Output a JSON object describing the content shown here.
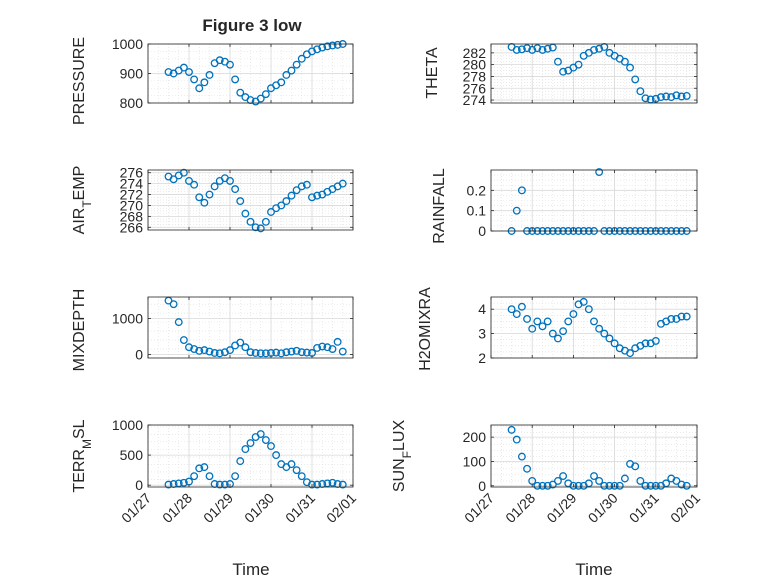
{
  "figure": {
    "title": "Figure 3 low",
    "xlabel": "Time",
    "date_ticks": [
      "01/27",
      "01/28",
      "01/29",
      "01/30",
      "01/31",
      "02/01"
    ],
    "date_values": [
      27,
      28,
      29,
      30,
      31,
      32
    ]
  },
  "style": {
    "marker_color": "#0072BD",
    "grid_color": "#dddddd"
  },
  "chart_data": [
    {
      "type": "scatter",
      "ylabel": "PRESSURE",
      "ylim": [
        800,
        1000
      ],
      "yticks": [
        800,
        900,
        1000
      ],
      "ytick_labels": [
        "800",
        "900",
        "1000"
      ],
      "xlim": [
        "01/27",
        "02/01"
      ],
      "grid": true,
      "x": [
        "01/27 12:00",
        "01/27 15:00",
        "01/27 18:00",
        "01/27 21:00",
        "01/28 00:00",
        "01/28 03:00",
        "01/28 06:00",
        "01/28 09:00",
        "01/28 12:00",
        "01/28 15:00",
        "01/28 18:00",
        "01/28 21:00",
        "01/29 00:00",
        "01/29 03:00",
        "01/29 06:00",
        "01/29 09:00",
        "01/29 12:00",
        "01/29 15:00",
        "01/29 18:00",
        "01/29 21:00",
        "01/30 00:00",
        "01/30 03:00",
        "01/30 06:00",
        "01/30 09:00",
        "01/30 12:00",
        "01/30 15:00",
        "01/30 18:00",
        "01/30 21:00",
        "01/31 00:00",
        "01/31 03:00",
        "01/31 06:00",
        "01/31 09:00",
        "01/31 12:00",
        "01/31 15:00",
        "01/31 18:00"
      ],
      "y": [
        905,
        900,
        910,
        920,
        905,
        880,
        850,
        870,
        895,
        935,
        945,
        940,
        930,
        880,
        835,
        820,
        810,
        805,
        815,
        830,
        850,
        860,
        870,
        895,
        910,
        930,
        950,
        965,
        975,
        982,
        988,
        992,
        995,
        997,
        1000
      ]
    },
    {
      "type": "scatter",
      "ylabel": "THETA",
      "ylim": [
        273.5,
        283.5
      ],
      "yticks": [
        274,
        276,
        278,
        280,
        282
      ],
      "ytick_labels": [
        "274",
        "276",
        "278",
        "280",
        "282"
      ],
      "xlim": [
        "01/27",
        "02/01"
      ],
      "grid": true,
      "x": [
        "01/27 12:00",
        "01/27 15:00",
        "01/27 18:00",
        "01/27 21:00",
        "01/28 00:00",
        "01/28 03:00",
        "01/28 06:00",
        "01/28 09:00",
        "01/28 12:00",
        "01/28 15:00",
        "01/28 18:00",
        "01/28 21:00",
        "01/29 00:00",
        "01/29 03:00",
        "01/29 06:00",
        "01/29 09:00",
        "01/29 12:00",
        "01/29 15:00",
        "01/29 18:00",
        "01/29 21:00",
        "01/30 00:00",
        "01/30 03:00",
        "01/30 06:00",
        "01/30 09:00",
        "01/30 12:00",
        "01/30 15:00",
        "01/30 18:00",
        "01/30 21:00",
        "01/31 00:00",
        "01/31 03:00",
        "01/31 06:00",
        "01/31 09:00",
        "01/31 12:00",
        "01/31 15:00",
        "01/31 18:00"
      ],
      "y": [
        283,
        282.5,
        282.6,
        282.8,
        282.5,
        282.8,
        282.5,
        282.7,
        282.9,
        280.5,
        278.8,
        279,
        279.5,
        280,
        281.5,
        282,
        282.5,
        282.7,
        283,
        282,
        281.5,
        281,
        280.5,
        279.5,
        277.5,
        275.5,
        274.3,
        274.1,
        274.2,
        274.5,
        274.6,
        274.5,
        274.8,
        274.6,
        274.7
      ]
    },
    {
      "type": "scatter",
      "ylabel": "AIR_TEMP",
      "ylim": [
        265.5,
        276.5
      ],
      "yticks": [
        266,
        268,
        270,
        272,
        274,
        276
      ],
      "ytick_labels": [
        "266",
        "268",
        "270",
        "272",
        "274",
        "276"
      ],
      "xlim": [
        "01/27",
        "02/01"
      ],
      "grid": true,
      "x": [
        "01/27 12:00",
        "01/27 15:00",
        "01/27 18:00",
        "01/27 21:00",
        "01/28 00:00",
        "01/28 03:00",
        "01/28 06:00",
        "01/28 09:00",
        "01/28 12:00",
        "01/28 15:00",
        "01/28 18:00",
        "01/28 21:00",
        "01/29 00:00",
        "01/29 03:00",
        "01/29 06:00",
        "01/29 09:00",
        "01/29 12:00",
        "01/29 15:00",
        "01/29 18:00",
        "01/29 21:00",
        "01/30 00:00",
        "01/30 03:00",
        "01/30 06:00",
        "01/30 09:00",
        "01/30 12:00",
        "01/30 15:00",
        "01/30 18:00",
        "01/30 21:00",
        "01/31 00:00",
        "01/31 03:00",
        "01/31 06:00",
        "01/31 09:00",
        "01/31 12:00",
        "01/31 15:00",
        "01/31 18:00"
      ],
      "y": [
        275.3,
        274.8,
        275.5,
        276,
        274.5,
        273.8,
        271.5,
        270.5,
        272,
        273.5,
        274.5,
        275,
        274.5,
        273,
        270.8,
        268.5,
        267,
        266,
        265.8,
        267,
        268.8,
        269.5,
        270,
        270.8,
        271.8,
        272.8,
        273.5,
        273.8,
        271.5,
        271.8,
        272,
        272.5,
        273,
        273.5,
        274
      ]
    },
    {
      "type": "scatter",
      "ylabel": "RAINFALL",
      "ylim": [
        0,
        0.3
      ],
      "yticks": [
        0,
        0.1,
        0.2
      ],
      "ytick_labels": [
        "0",
        "0.1",
        "0.2"
      ],
      "xlim": [
        "01/27",
        "02/01"
      ],
      "grid": true,
      "x": [
        "01/27 12:00",
        "01/27 15:00",
        "01/27 18:00",
        "01/27 21:00",
        "01/28 00:00",
        "01/28 03:00",
        "01/28 06:00",
        "01/28 09:00",
        "01/28 12:00",
        "01/28 15:00",
        "01/28 18:00",
        "01/28 21:00",
        "01/29 00:00",
        "01/29 03:00",
        "01/29 06:00",
        "01/29 09:00",
        "01/29 12:00",
        "01/29 15:00",
        "01/29 18:00",
        "01/29 21:00",
        "01/30 00:00",
        "01/30 03:00",
        "01/30 06:00",
        "01/30 09:00",
        "01/30 12:00",
        "01/30 15:00",
        "01/30 18:00",
        "01/30 21:00",
        "01/31 00:00",
        "01/31 03:00",
        "01/31 06:00",
        "01/31 09:00",
        "01/31 12:00",
        "01/31 15:00",
        "01/31 18:00"
      ],
      "y": [
        0,
        0.1,
        0.2,
        0,
        0,
        0,
        0,
        0,
        0,
        0,
        0,
        0,
        0,
        0,
        0,
        0,
        0,
        0.29,
        0,
        0,
        0,
        0,
        0,
        0,
        0,
        0,
        0,
        0,
        0,
        0,
        0,
        0,
        0,
        0,
        0
      ]
    },
    {
      "type": "scatter",
      "ylabel": "MIXDEPTH",
      "ylim": [
        -100,
        1600
      ],
      "yticks": [
        0,
        1000
      ],
      "ytick_labels": [
        "0",
        "1000"
      ],
      "xlim": [
        "01/27",
        "02/01"
      ],
      "grid": true,
      "x": [
        "01/27 12:00",
        "01/27 15:00",
        "01/27 18:00",
        "01/27 21:00",
        "01/28 00:00",
        "01/28 03:00",
        "01/28 06:00",
        "01/28 09:00",
        "01/28 12:00",
        "01/28 15:00",
        "01/28 18:00",
        "01/28 21:00",
        "01/29 00:00",
        "01/29 03:00",
        "01/29 06:00",
        "01/29 09:00",
        "01/29 12:00",
        "01/29 15:00",
        "01/29 18:00",
        "01/29 21:00",
        "01/30 00:00",
        "01/30 03:00",
        "01/30 06:00",
        "01/30 09:00",
        "01/30 12:00",
        "01/30 15:00",
        "01/30 18:00",
        "01/30 21:00",
        "01/31 00:00",
        "01/31 03:00",
        "01/31 06:00",
        "01/31 09:00",
        "01/31 12:00",
        "01/31 15:00",
        "01/31 18:00"
      ],
      "y": [
        1500,
        1400,
        900,
        400,
        200,
        150,
        100,
        120,
        80,
        40,
        30,
        60,
        120,
        250,
        330,
        200,
        60,
        40,
        30,
        30,
        40,
        50,
        30,
        60,
        80,
        100,
        60,
        50,
        40,
        180,
        220,
        200,
        150,
        350,
        80
      ]
    },
    {
      "type": "scatter",
      "ylabel": "H2OMIXRA",
      "ylim": [
        2,
        4.5
      ],
      "yticks": [
        2,
        3,
        4
      ],
      "ytick_labels": [
        "2",
        "3",
        "4"
      ],
      "xlim": [
        "01/27",
        "02/01"
      ],
      "grid": true,
      "x": [
        "01/27 12:00",
        "01/27 15:00",
        "01/27 18:00",
        "01/27 21:00",
        "01/28 00:00",
        "01/28 03:00",
        "01/28 06:00",
        "01/28 09:00",
        "01/28 12:00",
        "01/28 15:00",
        "01/28 18:00",
        "01/28 21:00",
        "01/29 00:00",
        "01/29 03:00",
        "01/29 06:00",
        "01/29 09:00",
        "01/29 12:00",
        "01/29 15:00",
        "01/29 18:00",
        "01/29 21:00",
        "01/30 00:00",
        "01/30 03:00",
        "01/30 06:00",
        "01/30 09:00",
        "01/30 12:00",
        "01/30 15:00",
        "01/30 18:00",
        "01/30 21:00",
        "01/31 00:00",
        "01/31 03:00",
        "01/31 06:00",
        "01/31 09:00",
        "01/31 12:00",
        "01/31 15:00",
        "01/31 18:00"
      ],
      "y": [
        4,
        3.8,
        4.1,
        3.6,
        3.2,
        3.5,
        3.3,
        3.5,
        3.0,
        2.8,
        3.1,
        3.5,
        3.8,
        4.2,
        4.3,
        4.0,
        3.5,
        3.2,
        3.0,
        2.8,
        2.6,
        2.4,
        2.3,
        2.2,
        2.4,
        2.5,
        2.6,
        2.6,
        2.7,
        3.4,
        3.5,
        3.6,
        3.6,
        3.7,
        3.7
      ]
    },
    {
      "type": "scatter",
      "ylabel": "TERR_MSL",
      "ylim": [
        -30,
        1000
      ],
      "yticks": [
        0,
        500,
        1000
      ],
      "ytick_labels": [
        "0",
        "500",
        "1000"
      ],
      "xlim": [
        "01/27",
        "02/01"
      ],
      "grid": true,
      "x": [
        "01/27 12:00",
        "01/27 15:00",
        "01/27 18:00",
        "01/27 21:00",
        "01/28 00:00",
        "01/28 03:00",
        "01/28 06:00",
        "01/28 09:00",
        "01/28 12:00",
        "01/28 15:00",
        "01/28 18:00",
        "01/28 21:00",
        "01/29 00:00",
        "01/29 03:00",
        "01/29 06:00",
        "01/29 09:00",
        "01/29 12:00",
        "01/29 15:00",
        "01/29 18:00",
        "01/29 21:00",
        "01/30 00:00",
        "01/30 03:00",
        "01/30 06:00",
        "01/30 09:00",
        "01/30 12:00",
        "01/30 15:00",
        "01/30 18:00",
        "01/30 21:00",
        "01/31 00:00",
        "01/31 03:00",
        "01/31 06:00",
        "01/31 09:00",
        "01/31 12:00",
        "01/31 15:00",
        "01/31 18:00"
      ],
      "y": [
        10,
        20,
        30,
        40,
        60,
        150,
        280,
        300,
        150,
        20,
        10,
        10,
        20,
        150,
        400,
        600,
        700,
        800,
        850,
        750,
        650,
        500,
        350,
        300,
        350,
        250,
        150,
        50,
        10,
        10,
        20,
        30,
        40,
        20,
        10
      ]
    },
    {
      "type": "scatter",
      "ylabel": "SUN_FLUX",
      "ylim": [
        -5,
        250
      ],
      "yticks": [
        0,
        100,
        200
      ],
      "ytick_labels": [
        "0",
        "100",
        "200"
      ],
      "xlim": [
        "01/27",
        "02/01"
      ],
      "grid": true,
      "x": [
        "01/27 12:00",
        "01/27 15:00",
        "01/27 18:00",
        "01/27 21:00",
        "01/28 00:00",
        "01/28 03:00",
        "01/28 06:00",
        "01/28 09:00",
        "01/28 12:00",
        "01/28 15:00",
        "01/28 18:00",
        "01/28 21:00",
        "01/29 00:00",
        "01/29 03:00",
        "01/29 06:00",
        "01/29 09:00",
        "01/29 12:00",
        "01/29 15:00",
        "01/29 18:00",
        "01/29 21:00",
        "01/30 00:00",
        "01/30 03:00",
        "01/30 06:00",
        "01/30 09:00",
        "01/30 12:00",
        "01/30 15:00",
        "01/30 18:00",
        "01/30 21:00",
        "01/31 00:00",
        "01/31 03:00",
        "01/31 06:00",
        "01/31 09:00",
        "01/31 12:00",
        "01/31 15:00",
        "01/31 18:00"
      ],
      "y": [
        230,
        190,
        120,
        70,
        20,
        0,
        0,
        0,
        5,
        20,
        40,
        10,
        0,
        0,
        0,
        10,
        40,
        20,
        0,
        0,
        0,
        0,
        30,
        90,
        80,
        20,
        0,
        0,
        0,
        0,
        10,
        30,
        20,
        5,
        0
      ]
    }
  ]
}
